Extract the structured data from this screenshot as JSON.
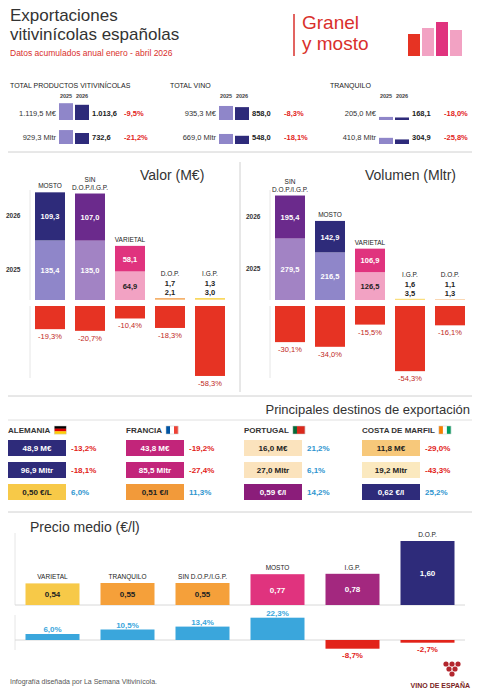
{
  "header": {
    "title": "Exportaciones vitivinícolas españolas",
    "subtitle": "Datos acumulados anual enero - abril 2026",
    "badge": "Granel y mosto"
  },
  "summary": {
    "years": [
      "2025",
      "2026"
    ],
    "ylim": [
      0,
      1200
    ],
    "colors": [
      "#8f86c9",
      "#2e2b7a"
    ],
    "groups": [
      {
        "title": "TOTAL PRODUCTOS VITIVINÍCOLAS",
        "rows": [
          {
            "label_2025": "1.119,5 M€",
            "value_2025": 1119.5,
            "label_2026": "1.013,6",
            "value_2026": 1013.6,
            "change": "-9,5%"
          },
          {
            "label_2025": "929,3 Mltr",
            "value_2025": 929.3,
            "label_2026": "732,6",
            "value_2026": 732.6,
            "change": "-21,2%"
          }
        ]
      },
      {
        "title": "TOTAL VINO",
        "rows": [
          {
            "label_2025": "935,3 M€",
            "value_2025": 935.3,
            "label_2026": "858,0",
            "value_2026": 858.0,
            "change": "-8,3%"
          },
          {
            "label_2025": "669,0 Mltr",
            "value_2025": 669.0,
            "label_2026": "548,0",
            "value_2026": 548.0,
            "change": "-18,1%"
          }
        ]
      },
      {
        "title": "TRANQUILO",
        "rows": [
          {
            "label_2025": "205,0 M€",
            "value_2025": 205.0,
            "label_2026": "168,1",
            "value_2026": 168.1,
            "change": "-18,0%"
          },
          {
            "label_2025": "410,8 Mltr",
            "value_2025": 410.8,
            "label_2026": "304,9",
            "value_2026": 304.9,
            "change": "-25,8%"
          }
        ]
      }
    ]
  },
  "chart_data": [
    {
      "type": "bar",
      "title": "Valor (M€)",
      "stacked": true,
      "data_labels": true,
      "tick_labels": false,
      "categories": [
        "MOSTO",
        "SIN D.O.P./I.G.P.",
        "VARIETAL",
        "D.O.P.",
        "I.G.P."
      ],
      "ylim": [
        0,
        250
      ],
      "series": [
        {
          "name": "2025",
          "values": [
            135.4,
            135.0,
            64.9,
            2.1,
            3.0
          ],
          "value_labels": [
            "135,4",
            "135,0",
            "64,9",
            "2,1",
            "3,0"
          ],
          "colors": [
            "#8f86c9",
            "#a283c4",
            "#f2a2c3",
            "#f8c98f",
            "#fbe089"
          ]
        },
        {
          "name": "2026",
          "values": [
            109.3,
            107.0,
            58.1,
            1.7,
            1.3
          ],
          "value_labels": [
            "109,3",
            "107,0",
            "58,1",
            "1,7",
            "1,3"
          ],
          "colors": [
            "#2e2b7a",
            "#6b2a8c",
            "#e0337e",
            "#f08c2c",
            "#f5c400"
          ]
        }
      ],
      "changes": {
        "values": [
          -19.3,
          -20.7,
          -10.4,
          -18.3,
          -58.3
        ],
        "value_labels": [
          "-19,3%",
          "-20,7%",
          "-10,4%",
          "-18,3%",
          "-58,3%"
        ],
        "color": "#e63323",
        "ylim": [
          -60,
          0
        ]
      }
    },
    {
      "type": "bar",
      "title": "Volumen (Mltr)",
      "stacked": true,
      "data_labels": true,
      "tick_labels": false,
      "categories": [
        "SIN D.O.P./I.G.P.",
        "MOSTO",
        "VARIETAL",
        "I.G.P.",
        "D.O.P."
      ],
      "ylim": [
        0,
        500
      ],
      "series": [
        {
          "name": "2025",
          "values": [
            279.5,
            216.5,
            126.5,
            3.5,
            1.3
          ],
          "value_labels": [
            "279,5",
            "216,5",
            "126,5",
            "3,5",
            "1,3"
          ],
          "colors": [
            "#a283c4",
            "#8f86c9",
            "#f2a2c3",
            "#fbe089",
            "#f8c98f"
          ]
        },
        {
          "name": "2026",
          "values": [
            195.4,
            142.9,
            106.9,
            1.6,
            1.1
          ],
          "value_labels": [
            "195,4",
            "142,9",
            "106,9",
            "1,6",
            "1,1"
          ],
          "colors": [
            "#6b2a8c",
            "#2e2b7a",
            "#e0337e",
            "#f5c400",
            "#f08c2c"
          ]
        }
      ],
      "changes": {
        "values": [
          -30.1,
          -34.0,
          -15.5,
          -54.3,
          -16.1
        ],
        "value_labels": [
          "-30,1%",
          "-34,0%",
          "-15,5%",
          "-54,3%",
          "-16,1%"
        ],
        "color": "#e63323",
        "ylim": [
          -60,
          0
        ]
      }
    },
    {
      "type": "bar",
      "title": "Precio medio (€/l)",
      "data_labels": true,
      "tick_labels": false,
      "categories": [
        "VARIETAL",
        "TRANQUILO",
        "SIN D.O.P./I.G.P.",
        "MOSTO",
        "I.G.P.",
        "D.O.P."
      ],
      "ylim": [
        0,
        1.8
      ],
      "values": [
        0.54,
        0.55,
        0.55,
        0.77,
        0.78,
        1.6
      ],
      "value_labels": [
        "0,54",
        "0,55",
        "0,55",
        "0,77",
        "0,78",
        "1,60"
      ],
      "colors": [
        "#f7c948",
        "#f5a03a",
        "#f5a03a",
        "#e0337e",
        "#a3287f",
        "#2e2b7a"
      ],
      "changes": {
        "values": [
          6.0,
          10.5,
          13.4,
          22.3,
          -8.7,
          -2.7
        ],
        "value_labels": [
          "6,0%",
          "10,5%",
          "13,4%",
          "22,3%",
          "-8,7%",
          "-2,7%"
        ],
        "colors": [
          "#3aa6dc",
          "#3aa6dc",
          "#3aa6dc",
          "#3aa6dc",
          "#e2231a",
          "#e2231a"
        ],
        "ylim": [
          -10,
          25
        ]
      }
    }
  ],
  "destinations": {
    "title": "Principales destinos de exportación",
    "countries": [
      {
        "name": "ALEMANIA",
        "colors": [
          "#2e2b7a",
          "#2e2b7a",
          "#f7c948"
        ],
        "rows": [
          {
            "text": "48,9 M€",
            "change": "-13,2%"
          },
          {
            "text": "96,9 Mltr",
            "change": "-18,1%"
          },
          {
            "text": "0,50 €/L",
            "change": "6,0%"
          }
        ]
      },
      {
        "name": "FRANCIA",
        "colors": [
          "#c2257a",
          "#c2257a",
          "#f29a3a"
        ],
        "rows": [
          {
            "text": "43,8 M€",
            "change": "-19,2%"
          },
          {
            "text": "85,5 Mltr",
            "change": "-27,4%"
          },
          {
            "text": "0,51 €/l",
            "change": "11,3%"
          }
        ]
      },
      {
        "name": "PORTUGAL",
        "colors": [
          "#fbe3bd",
          "#fbe3bd",
          "#8b1d7a"
        ],
        "rows": [
          {
            "text": "16,0 M€",
            "change": "21,2%"
          },
          {
            "text": "27,0 Mltr",
            "change": "6,1%"
          },
          {
            "text": "0,59 €/l",
            "change": "14,2%"
          }
        ]
      },
      {
        "name": "COSTA DE MARFIL",
        "colors": [
          "#f7c87a",
          "#fbe9bf",
          "#2e2b7a"
        ],
        "rows": [
          {
            "text": "11,8 M€",
            "change": "-29,0%"
          },
          {
            "text": "19,2 Mltr",
            "change": "-43,3%"
          },
          {
            "text": "0,62 €/l",
            "change": "25,2%"
          }
        ]
      }
    ]
  },
  "footer": {
    "credit": "Infografía diseñada por La Semana Vitivinícola.",
    "logo": "VINO DE ESPAÑA"
  }
}
